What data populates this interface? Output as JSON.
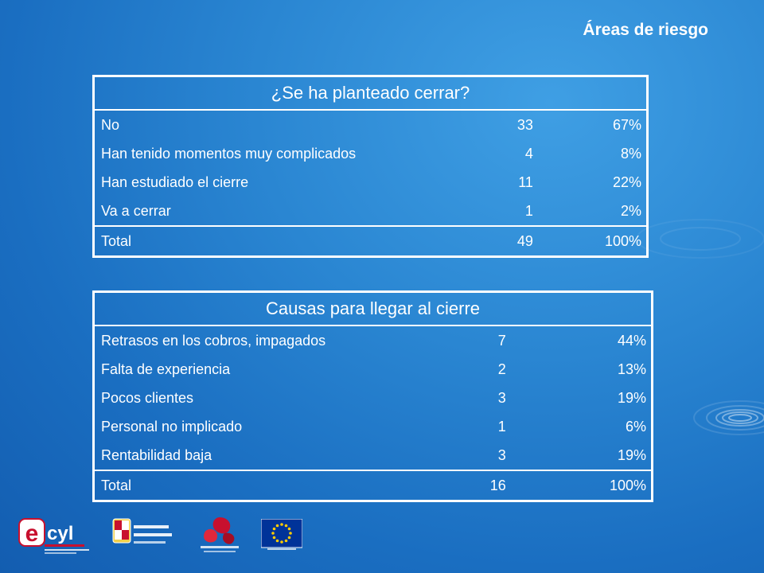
{
  "slide": {
    "title": "Áreas de riesgo"
  },
  "table1": {
    "title": "¿Se ha planteado cerrar?",
    "rows": [
      {
        "label": "No",
        "count": "33",
        "pct": "67%"
      },
      {
        "label": "Han tenido momentos muy complicados",
        "count": "4",
        "pct": "8%"
      },
      {
        "label": "Han estudiado el cierre",
        "count": "11",
        "pct": "22%"
      },
      {
        "label": "Va a cerrar",
        "count": "1",
        "pct": "2%"
      }
    ],
    "total": {
      "label": "Total",
      "count": "49",
      "pct": "100%"
    }
  },
  "table2": {
    "title": "Causas para llegar al cierre",
    "rows": [
      {
        "label": "Retrasos en los cobros, impagados",
        "count": "7",
        "pct": "44%"
      },
      {
        "label": "Falta de experiencia",
        "count": "2",
        "pct": "13%"
      },
      {
        "label": "Pocos clientes",
        "count": "3",
        "pct": "19%"
      },
      {
        "label": "Personal no implicado",
        "count": "1",
        "pct": "6%"
      },
      {
        "label": "Rentabilidad  baja",
        "count": "3",
        "pct": "19%"
      }
    ],
    "total": {
      "label": "Total",
      "count": "16",
      "pct": "100%"
    }
  },
  "logos": {
    "ecyl": {
      "mark": "e",
      "text": "cyl"
    },
    "jcyl": {
      "icon": "coat-of-arms-icon"
    },
    "fse": {
      "icon": "red-swirl-icon"
    },
    "eu": {
      "icon": "eu-flag-icon"
    }
  },
  "colors": {
    "text": "#ffffff",
    "eu_blue": "#003399",
    "eu_stars": "#ffcc00",
    "ecyl_red": "#c8102e"
  }
}
